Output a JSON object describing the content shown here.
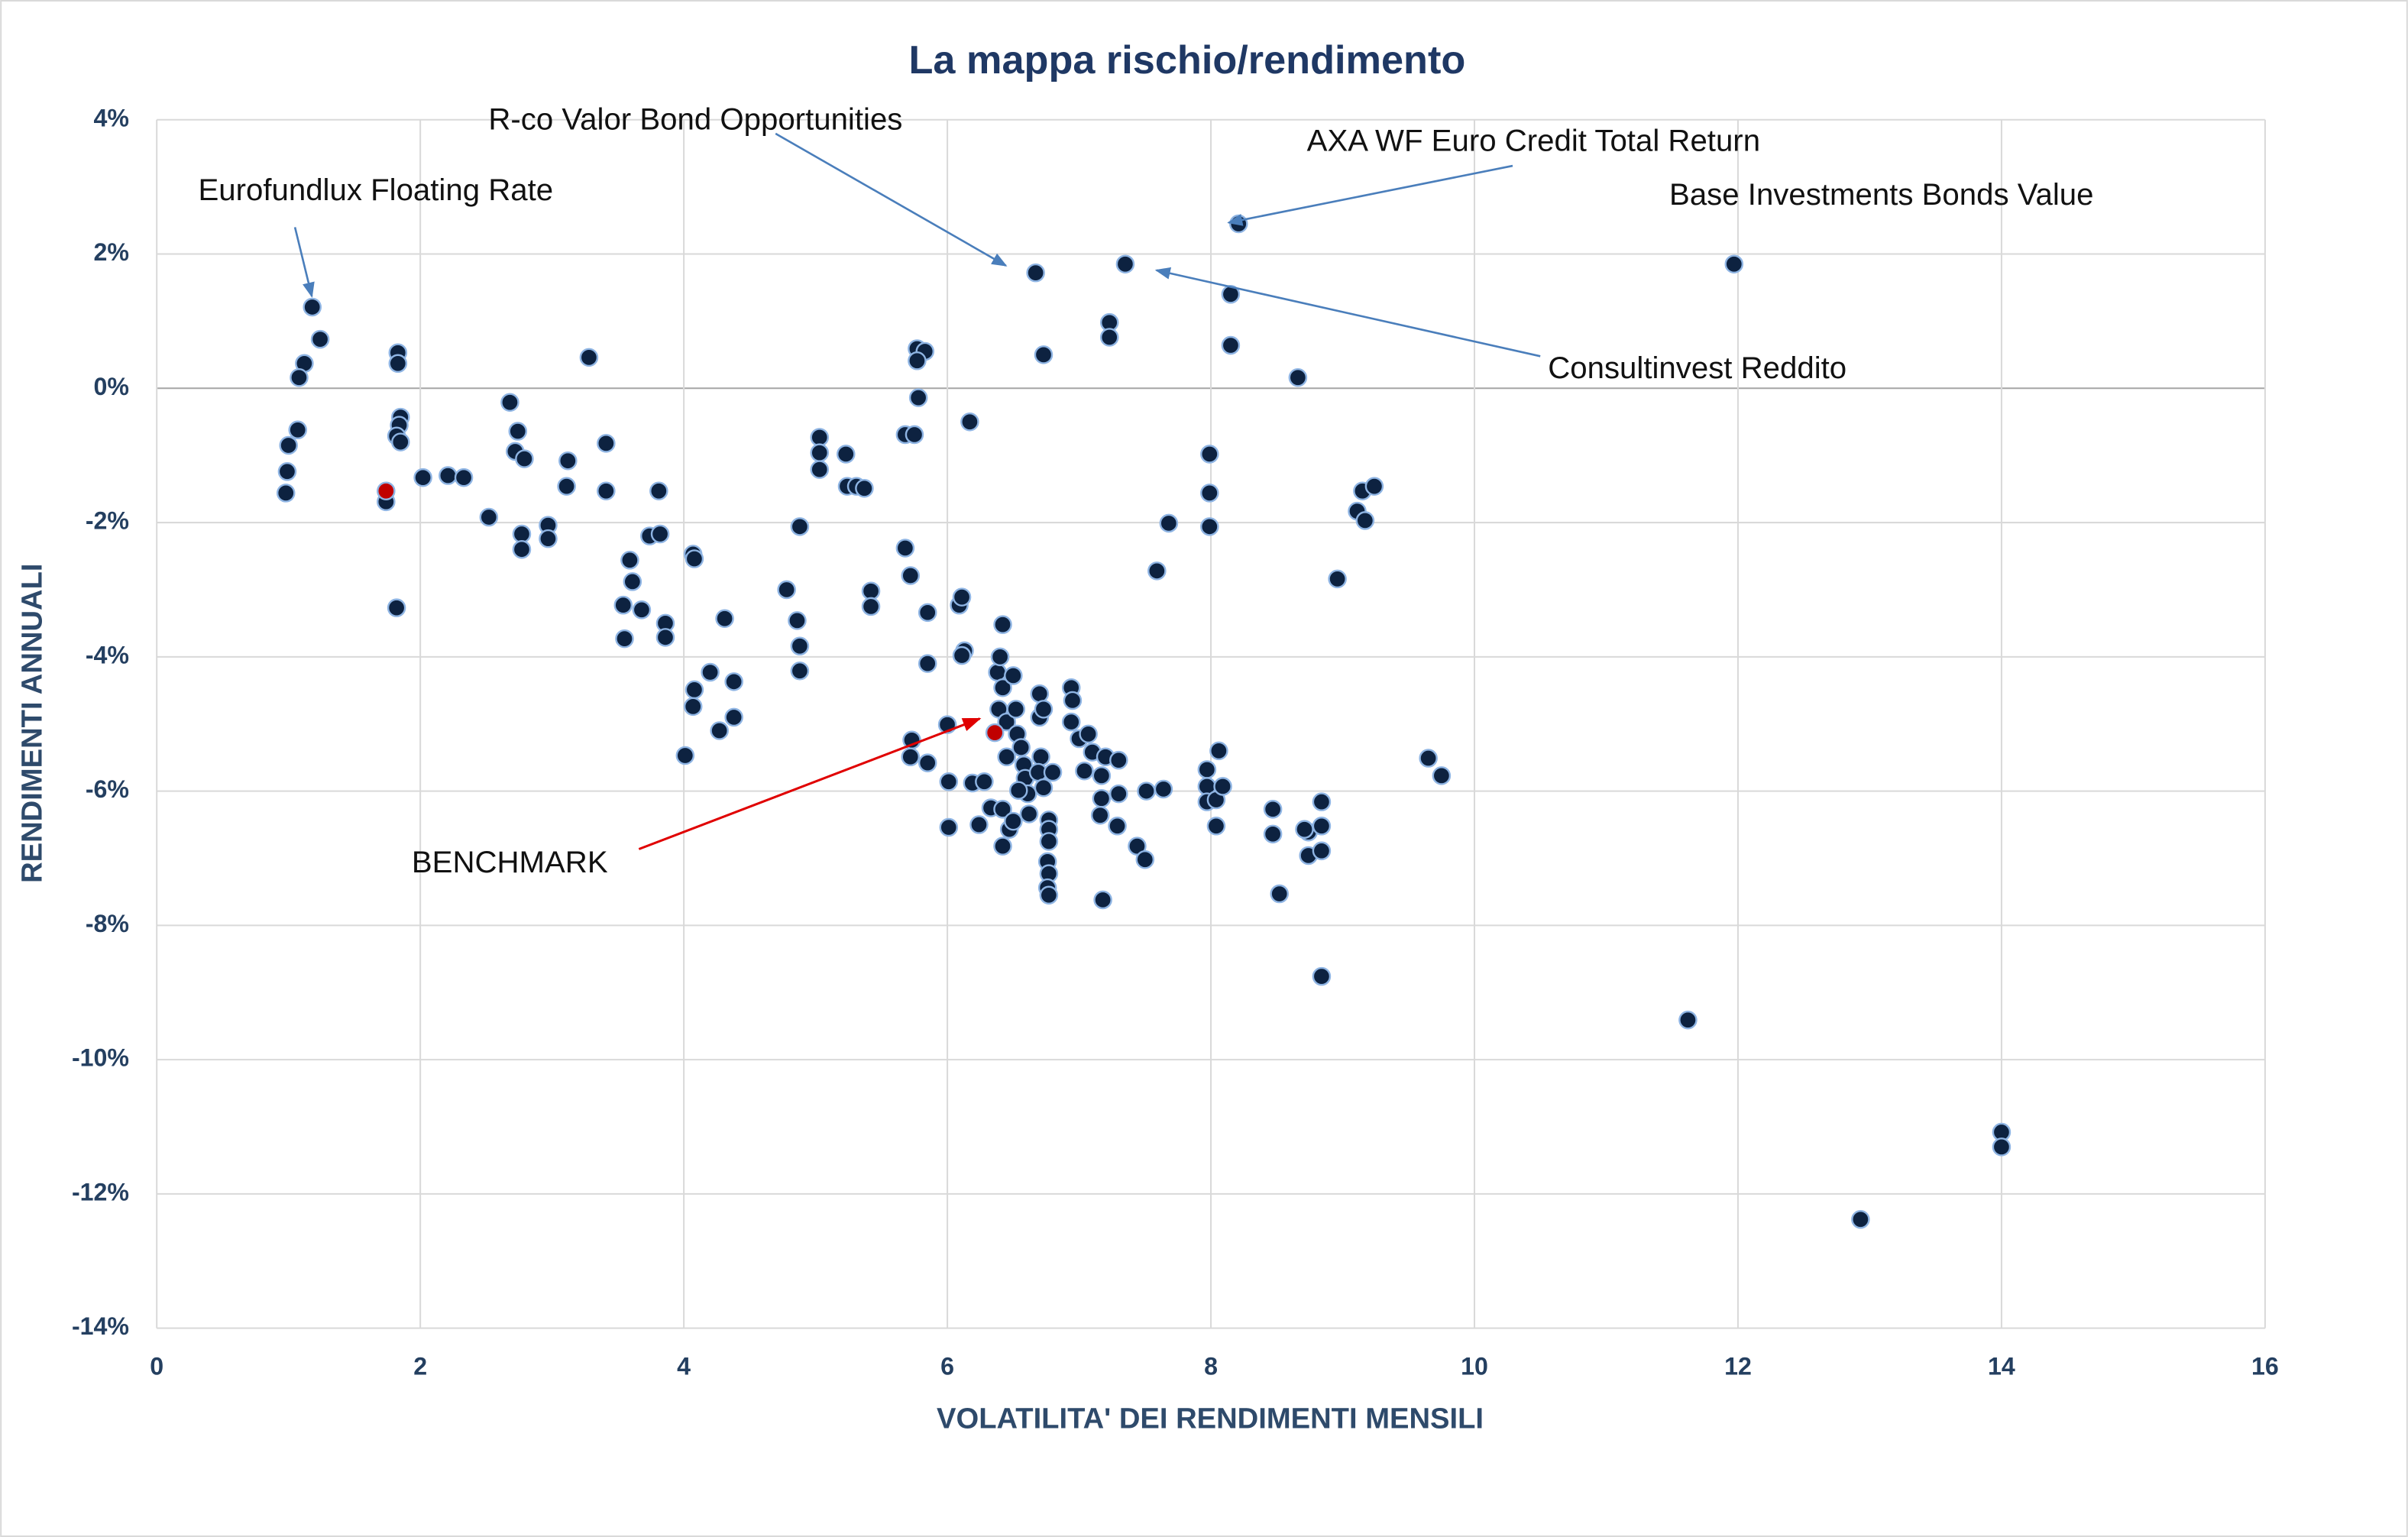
{
  "chart_data": {
    "type": "scatter",
    "title": "La mappa rischio/rendimento",
    "xlabel": "VOLATILITA' DEI RENDIMENTI MENSILI",
    "ylabel": "RENDIMENTI ANNUALI",
    "xlim": [
      0,
      16
    ],
    "xticks": [
      0,
      2,
      4,
      6,
      8,
      10,
      12,
      14,
      16
    ],
    "ylim": [
      -14,
      4
    ],
    "yticks": [
      {
        "value": -14,
        "label": "-14%"
      },
      {
        "value": -12,
        "label": "-12%"
      },
      {
        "value": -10,
        "label": "-10%"
      },
      {
        "value": -8,
        "label": "-8%"
      },
      {
        "value": -6,
        "label": "-6%"
      },
      {
        "value": -4,
        "label": "-4%"
      },
      {
        "value": -2,
        "label": "-2%"
      },
      {
        "value": 0,
        "label": "0%"
      },
      {
        "value": 2,
        "label": "2%"
      },
      {
        "value": 4,
        "label": "4%"
      }
    ],
    "grid": true,
    "edgecolor": "#8eb4e3",
    "series": [
      {
        "color": "#0d2240",
        "x": [
          1.18,
          1.24,
          1.12,
          1.08,
          1.07,
          1.0,
          0.99,
          0.98,
          1.74,
          1.83,
          1.83,
          1.85,
          1.84,
          1.82,
          1.85,
          1.82,
          2.02,
          2.21,
          2.33,
          2.52,
          2.68,
          2.74,
          2.72,
          2.79,
          2.77,
          2.77,
          2.97,
          2.97,
          3.12,
          3.11,
          3.28,
          3.41,
          3.41,
          3.74,
          3.82,
          3.81,
          3.59,
          3.61,
          3.54,
          3.68,
          3.55,
          3.86,
          3.86,
          4.07,
          4.08,
          4.08,
          4.07,
          4.01,
          4.2,
          4.31,
          4.27,
          4.38,
          4.38,
          4.78,
          4.88,
          4.86,
          4.88,
          4.88,
          5.03,
          5.03,
          5.03,
          5.23,
          5.24,
          5.31,
          5.37,
          5.42,
          5.42,
          5.68,
          5.72,
          5.68,
          5.75,
          5.77,
          5.83,
          5.77,
          5.78,
          6.17,
          5.85,
          5.85,
          5.73,
          5.72,
          5.85,
          6.01,
          6.01,
          6.0,
          6.09,
          6.11,
          6.13,
          6.11,
          6.19,
          6.24,
          6.28,
          6.33,
          6.42,
          6.38,
          6.4,
          6.39,
          6.42,
          6.45,
          6.5,
          6.52,
          6.45,
          6.42,
          6.47,
          6.42,
          6.53,
          6.56,
          6.58,
          6.59,
          6.61,
          6.62,
          6.54,
          6.5,
          6.67,
          6.73,
          6.7,
          6.7,
          6.71,
          6.69,
          6.73,
          6.77,
          6.77,
          6.77,
          6.76,
          6.77,
          6.76,
          6.77,
          6.8,
          6.73,
          6.94,
          6.95,
          6.94,
          7.04,
          7.0,
          7.07,
          7.1,
          7.17,
          7.17,
          7.16,
          7.18,
          7.2,
          7.23,
          7.23,
          7.3,
          7.29,
          7.3,
          7.35,
          7.44,
          7.5,
          7.51,
          7.64,
          7.59,
          7.68,
          7.99,
          7.99,
          7.99,
          7.97,
          7.97,
          7.97,
          8.04,
          8.04,
          8.09,
          8.06,
          8.21,
          8.15,
          8.15,
          8.66,
          8.47,
          8.47,
          8.52,
          8.74,
          8.74,
          8.71,
          8.84,
          8.84,
          8.84,
          8.84,
          8.96,
          9.11,
          9.17,
          9.15,
          9.24,
          9.65,
          9.75,
          11.97,
          11.62,
          12.93,
          14.0,
          14.0
        ],
        "values": [
          1.21,
          0.73,
          0.37,
          0.16,
          -0.62,
          -0.85,
          -1.24,
          -1.56,
          -1.69,
          0.53,
          0.37,
          -0.43,
          -0.55,
          -0.71,
          -0.8,
          -3.27,
          -1.33,
          -1.3,
          -1.33,
          -1.92,
          -0.21,
          -0.64,
          -0.94,
          -1.05,
          -2.17,
          -2.4,
          -2.04,
          -2.24,
          -1.08,
          -1.46,
          0.46,
          -0.82,
          -1.53,
          -2.2,
          -2.17,
          -1.53,
          -2.56,
          -2.88,
          -3.23,
          -3.3,
          -3.73,
          -3.5,
          -3.71,
          -2.47,
          -2.54,
          -4.49,
          -4.74,
          -5.47,
          -4.23,
          -3.43,
          -5.1,
          -4.37,
          -4.9,
          -3.0,
          -2.06,
          -3.46,
          -3.84,
          -4.21,
          -0.73,
          -0.96,
          -1.21,
          -0.98,
          -1.46,
          -1.46,
          -1.49,
          -3.02,
          -3.25,
          -2.38,
          -2.79,
          -0.69,
          -0.69,
          0.59,
          0.55,
          0.41,
          -0.14,
          -0.5,
          -3.34,
          -4.1,
          -5.24,
          -5.49,
          -5.58,
          -5.86,
          -6.54,
          -5.01,
          -3.23,
          -3.11,
          -3.91,
          -3.98,
          -5.88,
          -6.5,
          -5.86,
          -6.25,
          -3.52,
          -4.23,
          -4.0,
          -4.78,
          -4.46,
          -4.97,
          -4.28,
          -4.78,
          -5.49,
          -6.82,
          -6.57,
          -6.27,
          -5.15,
          -5.35,
          -5.61,
          -5.81,
          -6.04,
          -6.34,
          -5.99,
          -6.45,
          1.72,
          0.5,
          -4.55,
          -4.9,
          -5.49,
          -5.72,
          -5.95,
          -6.43,
          -6.57,
          -6.75,
          -7.05,
          -7.23,
          -7.44,
          -7.55,
          -5.72,
          -4.78,
          -4.46,
          -4.65,
          -4.97,
          -5.7,
          -5.22,
          -5.15,
          -5.42,
          -5.77,
          -6.11,
          -6.36,
          -7.62,
          -5.49,
          0.98,
          0.76,
          -6.04,
          -6.52,
          -5.54,
          1.85,
          -6.82,
          -7.02,
          -6.0,
          -5.97,
          -2.72,
          -2.01,
          -0.98,
          -1.56,
          -2.06,
          -5.68,
          -5.93,
          -6.16,
          -6.13,
          -6.52,
          -5.93,
          -5.4,
          2.45,
          1.4,
          0.64,
          0.16,
          -6.27,
          -6.64,
          -7.53,
          -6.61,
          -6.96,
          -6.57,
          -6.16,
          -6.52,
          -6.89,
          -8.76,
          -2.84,
          -1.83,
          -1.97,
          -1.53,
          -1.46,
          -5.51,
          -5.77,
          1.85,
          -9.41,
          -12.38,
          -11.08,
          -11.3
        ]
      },
      {
        "color": "#c00000",
        "x": [
          1.74,
          6.36
        ],
        "values": [
          -1.53,
          -5.13
        ]
      }
    ],
    "annotations": [
      {
        "text": "Eurofundlux Floating Rate"
      },
      {
        "text": "R-co Valor Bond Opportunities"
      },
      {
        "text": "AXA WF Euro Credit Total Return"
      },
      {
        "text": "Base Investments Bonds Value"
      },
      {
        "text": "Consultinvest Reddito"
      },
      {
        "text": "BENCHMARK",
        "color": "#e00000"
      }
    ]
  }
}
